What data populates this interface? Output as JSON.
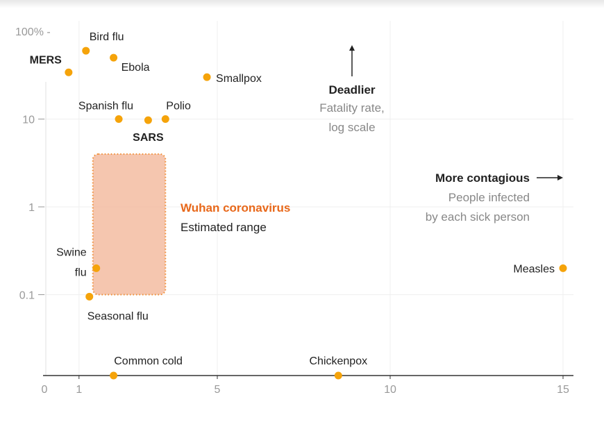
{
  "chart_data": {
    "type": "scatter",
    "x_axis": {
      "range": [
        0,
        15.4
      ],
      "ticks": [
        "0",
        "1",
        "5",
        "10",
        "15"
      ]
    },
    "y_axis": {
      "scale": "log",
      "range": [
        0.01,
        100
      ],
      "ticks": [
        "100% -",
        "10",
        "1",
        "0.1"
      ]
    },
    "grid": true,
    "points": [
      {
        "name": "Bird flu",
        "x": 1.2,
        "y": 60,
        "bold": false
      },
      {
        "name": "MERS",
        "x": 0.7,
        "y": 34,
        "bold": true
      },
      {
        "name": "Ebola",
        "x": 2.0,
        "y": 50,
        "bold": false
      },
      {
        "name": "Smallpox",
        "x": 4.7,
        "y": 30,
        "bold": false
      },
      {
        "name": "Spanish flu",
        "x": 2.15,
        "y": 10,
        "bold": false
      },
      {
        "name": "Polio",
        "x": 3.5,
        "y": 10,
        "bold": false
      },
      {
        "name": "SARS",
        "x": 3.0,
        "y": 9.7,
        "bold": true
      },
      {
        "name": "Swine flu",
        "x": 1.5,
        "y": 0.2,
        "bold": false
      },
      {
        "name": "Seasonal flu",
        "x": 1.3,
        "y": 0.095,
        "bold": false
      },
      {
        "name": "Measles",
        "x": 15.0,
        "y": 0.2,
        "bold": false
      },
      {
        "name": "Common cold",
        "x": 2.0,
        "y": null,
        "bold": false
      },
      {
        "name": "Chickenpox",
        "x": 8.5,
        "y": null,
        "bold": false
      }
    ],
    "range_box": {
      "name": "Wuhan coronavirus",
      "subtitle": "Estimated range",
      "x": [
        1.4,
        3.5
      ],
      "y": [
        0.1,
        4
      ]
    },
    "annotations": {
      "up_title": "Deadlier",
      "up_line1": "Fatality rate,",
      "up_line2": "log scale",
      "right_title": "More contagious",
      "right_line1": "People infected",
      "right_line2": "by each sick person"
    },
    "colors": {
      "point": "#f5a30a",
      "range_fill": "#f2b89b",
      "range_border": "#f08a2e",
      "highlight_text": "#e8681a"
    }
  }
}
